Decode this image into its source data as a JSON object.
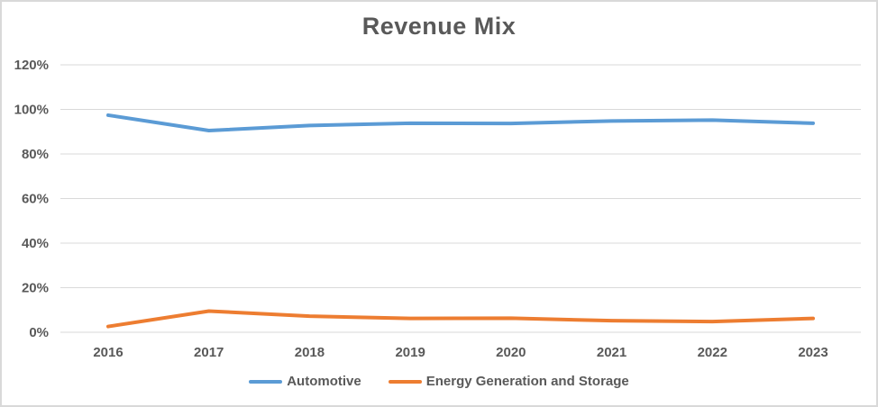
{
  "chart_data": {
    "type": "line",
    "title": "Revenue Mix",
    "categories": [
      "2016",
      "2017",
      "2018",
      "2019",
      "2020",
      "2021",
      "2022",
      "2023"
    ],
    "series": [
      {
        "name": "Automotive",
        "color": "#5B9BD5",
        "values": [
          97.4,
          90.5,
          92.8,
          93.8,
          93.7,
          94.8,
          95.2,
          93.8
        ]
      },
      {
        "name": "Energy Generation and Storage",
        "color": "#ED7D31",
        "values": [
          2.6,
          9.5,
          7.2,
          6.2,
          6.3,
          5.2,
          4.8,
          6.2
        ]
      }
    ],
    "yticks": [
      {
        "value": 0,
        "label": "0%"
      },
      {
        "value": 20,
        "label": "20%"
      },
      {
        "value": 40,
        "label": "40%"
      },
      {
        "value": 60,
        "label": "60%"
      },
      {
        "value": 80,
        "label": "80%"
      },
      {
        "value": 100,
        "label": "100%"
      },
      {
        "value": 120,
        "label": "120%"
      }
    ],
    "ylim": [
      0,
      120
    ],
    "xlabel": "",
    "ylabel": "",
    "grid": "horizontal",
    "legend_position": "bottom",
    "text_color": "#595959",
    "grid_color": "#D9D9D9",
    "border_color": "#D9D9D9",
    "background_color": "#FFFFFF"
  }
}
